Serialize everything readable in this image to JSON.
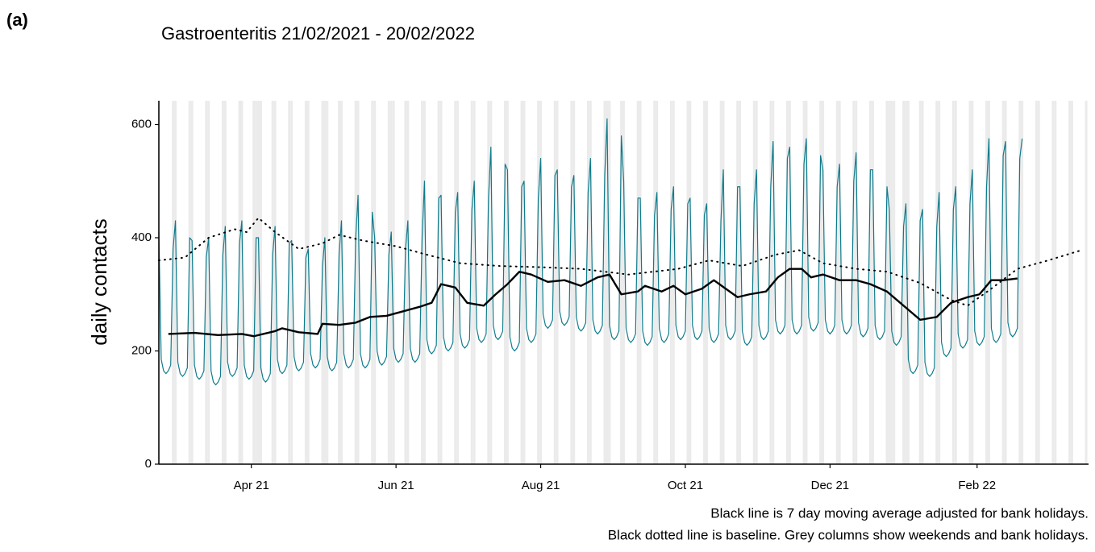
{
  "panel_label": "(a)",
  "chart_data": {
    "type": "line",
    "title": "Gastroenteritis 21/02/2021 - 20/02/2022",
    "y_label": "daily contacts",
    "notes": [
      "Black line is 7 day moving average adjusted for bank holidays.",
      "Black dotted line is baseline. Grey columns show weekends and bank holidays."
    ],
    "xlim": [
      0,
      392
    ],
    "ylim": [
      0,
      642
    ],
    "yticks": [
      0,
      200,
      400,
      600
    ],
    "xticks": [
      {
        "value": 39,
        "label": "Apr 21"
      },
      {
        "value": 100,
        "label": "Jun 21"
      },
      {
        "value": 161,
        "label": "Aug 21"
      },
      {
        "value": 222,
        "label": "Oct 21"
      },
      {
        "value": 283,
        "label": "Dec 21"
      },
      {
        "value": 345,
        "label": "Feb 22"
      }
    ],
    "shade_color": "#ebebeb",
    "shaded_days": [
      0,
      6,
      7,
      13,
      14,
      20,
      21,
      27,
      28,
      34,
      35,
      40,
      41,
      42,
      43,
      48,
      49,
      55,
      56,
      62,
      63,
      69,
      70,
      71,
      76,
      77,
      83,
      84,
      90,
      91,
      97,
      98,
      99,
      104,
      105,
      111,
      112,
      118,
      119,
      125,
      126,
      132,
      133,
      139,
      140,
      146,
      147,
      153,
      154,
      160,
      161,
      167,
      168,
      174,
      175,
      181,
      182,
      188,
      189,
      190,
      195,
      196,
      202,
      203,
      209,
      210,
      216,
      217,
      223,
      224,
      230,
      231,
      237,
      238,
      244,
      245,
      251,
      252,
      258,
      259,
      265,
      266,
      272,
      273,
      279,
      280,
      286,
      287,
      293,
      294,
      300,
      301,
      307,
      308,
      309,
      310,
      314,
      315,
      316,
      321,
      322,
      328,
      329,
      335,
      336,
      342,
      343,
      349,
      350,
      356,
      357,
      363,
      364,
      370,
      371,
      377,
      378,
      384,
      385,
      391
    ],
    "series": [
      {
        "color": "#0f7b8c",
        "style": "solid",
        "width": 1.2,
        "x": [
          0,
          1,
          2,
          3,
          4,
          5,
          6,
          7,
          8,
          9,
          10,
          11,
          12,
          13,
          14,
          15,
          16,
          17,
          18,
          19,
          20,
          21,
          22,
          23,
          24,
          25,
          26,
          27,
          28,
          29,
          30,
          31,
          32,
          33,
          34,
          35,
          36,
          37,
          38,
          39,
          40,
          41,
          42,
          43,
          44,
          45,
          46,
          47,
          48,
          49,
          50,
          51,
          52,
          53,
          54,
          55,
          56,
          57,
          58,
          59,
          60,
          61,
          62,
          63,
          64,
          65,
          66,
          67,
          68,
          69,
          70,
          71,
          72,
          73,
          74,
          75,
          76,
          77,
          78,
          79,
          80,
          81,
          82,
          83,
          84,
          85,
          86,
          87,
          88,
          89,
          90,
          91,
          92,
          93,
          94,
          95,
          96,
          97,
          98,
          99,
          100,
          101,
          102,
          103,
          104,
          105,
          106,
          107,
          108,
          109,
          110,
          111,
          112,
          113,
          114,
          115,
          116,
          117,
          118,
          119,
          120,
          121,
          122,
          123,
          124,
          125,
          126,
          127,
          128,
          129,
          130,
          131,
          132,
          133,
          134,
          135,
          136,
          137,
          138,
          139,
          140,
          141,
          142,
          143,
          144,
          145,
          146,
          147,
          148,
          149,
          150,
          151,
          152,
          153,
          154,
          155,
          156,
          157,
          158,
          159,
          160,
          161,
          162,
          163,
          164,
          165,
          166,
          167,
          168,
          169,
          170,
          171,
          172,
          173,
          174,
          175,
          176,
          177,
          178,
          179,
          180,
          181,
          182,
          183,
          184,
          185,
          186,
          187,
          188,
          189,
          190,
          191,
          192,
          193,
          194,
          195,
          196,
          197,
          198,
          199,
          200,
          201,
          202,
          203,
          204,
          205,
          206,
          207,
          208,
          209,
          210,
          211,
          212,
          213,
          214,
          215,
          216,
          217,
          218,
          219,
          220,
          221,
          222,
          223,
          224,
          225,
          226,
          227,
          228,
          229,
          230,
          231,
          232,
          233,
          234,
          235,
          236,
          237,
          238,
          239,
          240,
          241,
          242,
          243,
          244,
          245,
          246,
          247,
          248,
          249,
          250,
          251,
          252,
          253,
          254,
          255,
          256,
          257,
          258,
          259,
          260,
          261,
          262,
          263,
          264,
          265,
          266,
          267,
          268,
          269,
          270,
          271,
          272,
          273,
          274,
          275,
          276,
          277,
          278,
          279,
          280,
          281,
          282,
          283,
          284,
          285,
          286,
          287,
          288,
          289,
          290,
          291,
          292,
          293,
          294,
          295,
          296,
          297,
          298,
          299,
          300,
          301,
          302,
          303,
          304,
          305,
          306,
          307,
          308,
          309,
          310,
          311,
          312,
          313,
          314,
          315,
          316,
          317,
          318,
          319,
          320,
          321,
          322,
          323,
          324,
          325,
          326,
          327,
          328,
          329,
          330,
          331,
          332,
          333,
          334,
          335,
          336,
          337,
          338,
          339,
          340,
          341,
          342,
          343,
          344,
          345,
          346,
          347,
          348,
          349,
          350,
          351,
          352,
          353,
          354,
          355,
          356,
          357,
          358,
          359,
          360,
          361,
          362,
          363,
          364
        ],
        "values": [
          410,
          185,
          165,
          160,
          165,
          175,
          380,
          430,
          180,
          160,
          155,
          160,
          170,
          400,
          395,
          175,
          155,
          150,
          155,
          165,
          365,
          400,
          165,
          145,
          140,
          145,
          155,
          370,
          420,
          180,
          160,
          155,
          160,
          170,
          390,
          430,
          175,
          155,
          150,
          155,
          165,
          400,
          400,
          170,
          150,
          145,
          150,
          160,
          370,
          420,
          185,
          165,
          160,
          165,
          175,
          390,
          395,
          190,
          170,
          165,
          170,
          180,
          365,
          380,
          195,
          175,
          170,
          175,
          185,
          350,
          400,
          190,
          170,
          165,
          170,
          180,
          370,
          430,
          195,
          175,
          170,
          175,
          185,
          400,
          475,
          195,
          175,
          170,
          175,
          185,
          445,
          400,
          200,
          180,
          175,
          180,
          190,
          370,
          410,
          205,
          185,
          180,
          185,
          195,
          380,
          430,
          205,
          185,
          180,
          185,
          195,
          400,
          500,
          220,
          200,
          195,
          200,
          210,
          470,
          475,
          225,
          205,
          200,
          205,
          215,
          445,
          480,
          230,
          210,
          205,
          210,
          220,
          450,
          500,
          240,
          220,
          215,
          220,
          230,
          470,
          560,
          245,
          225,
          220,
          225,
          235,
          530,
          520,
          225,
          205,
          200,
          205,
          215,
          490,
          500,
          240,
          220,
          215,
          220,
          230,
          470,
          540,
          265,
          245,
          240,
          245,
          255,
          510,
          520,
          270,
          250,
          245,
          250,
          260,
          490,
          510,
          260,
          240,
          235,
          240,
          250,
          480,
          540,
          255,
          235,
          230,
          235,
          245,
          510,
          610,
          245,
          225,
          220,
          225,
          235,
          580,
          500,
          240,
          220,
          215,
          220,
          230,
          470,
          470,
          235,
          215,
          210,
          215,
          225,
          440,
          480,
          240,
          220,
          215,
          220,
          230,
          450,
          490,
          245,
          225,
          220,
          225,
          235,
          460,
          470,
          245,
          225,
          220,
          225,
          235,
          440,
          460,
          240,
          220,
          215,
          220,
          230,
          430,
          520,
          245,
          225,
          220,
          225,
          235,
          490,
          490,
          235,
          215,
          210,
          215,
          225,
          460,
          520,
          245,
          225,
          220,
          225,
          235,
          490,
          570,
          255,
          235,
          230,
          235,
          245,
          540,
          560,
          255,
          235,
          230,
          235,
          245,
          530,
          575,
          260,
          240,
          235,
          240,
          250,
          545,
          520,
          255,
          235,
          230,
          235,
          245,
          490,
          530,
          255,
          235,
          230,
          235,
          245,
          500,
          550,
          250,
          230,
          225,
          230,
          240,
          520,
          520,
          245,
          225,
          220,
          225,
          235,
          490,
          450,
          235,
          215,
          210,
          215,
          225,
          420,
          460,
          185,
          165,
          160,
          165,
          175,
          430,
          450,
          180,
          160,
          155,
          160,
          170,
          420,
          480,
          215,
          195,
          190,
          195,
          205,
          450,
          490,
          230,
          210,
          205,
          210,
          220,
          460,
          520,
          235,
          215,
          210,
          215,
          225,
          490,
          575,
          240,
          220,
          215,
          220,
          230,
          545,
          570,
          250,
          230,
          225,
          230,
          240,
          540,
          575
        ]
      },
      {
        "color": "#000000",
        "style": "solid",
        "width": 2.4,
        "x": [
          4,
          15,
          25,
          35,
          40,
          49,
          52,
          59,
          67,
          69,
          76,
          83,
          89,
          96,
          103,
          110,
          115,
          119,
          125,
          130,
          137,
          142,
          147,
          152,
          157,
          164,
          171,
          178,
          185,
          190,
          195,
          202,
          205,
          212,
          217,
          222,
          229,
          234,
          239,
          244,
          249,
          256,
          261,
          266,
          271,
          275,
          280,
          287,
          294,
          300,
          307,
          314,
          321,
          328,
          334,
          341,
          346,
          351,
          356,
          362
        ],
        "values": [
          230,
          232,
          228,
          230,
          226,
          235,
          240,
          233,
          230,
          248,
          246,
          250,
          260,
          262,
          270,
          278,
          285,
          318,
          312,
          285,
          280,
          300,
          318,
          340,
          335,
          322,
          325,
          315,
          330,
          335,
          300,
          305,
          315,
          305,
          315,
          300,
          310,
          325,
          310,
          295,
          300,
          305,
          330,
          345,
          345,
          330,
          335,
          325,
          325,
          318,
          305,
          280,
          255,
          260,
          285,
          295,
          300,
          325,
          325,
          328
        ]
      },
      {
        "color": "#000000",
        "style": "dotted",
        "width": 2,
        "x": [
          0,
          11,
          21,
          32,
          37,
          42,
          49,
          59,
          69,
          76,
          86,
          100,
          113,
          127,
          144,
          161,
          178,
          198,
          219,
          232,
          246,
          260,
          270,
          280,
          294,
          307,
          321,
          334,
          341,
          351,
          362,
          375,
          389
        ],
        "values": [
          360,
          365,
          400,
          415,
          410,
          435,
          410,
          380,
          390,
          405,
          395,
          385,
          370,
          355,
          350,
          348,
          345,
          335,
          345,
          360,
          350,
          370,
          378,
          355,
          345,
          340,
          320,
          290,
          280,
          310,
          345,
          360,
          378
        ]
      }
    ]
  }
}
